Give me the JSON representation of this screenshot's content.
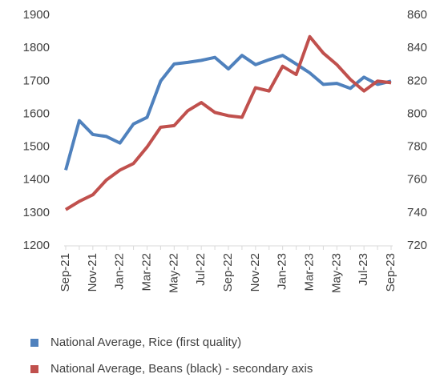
{
  "chart_data": {
    "type": "line",
    "categories": [
      "Sep-21",
      null,
      "Nov-21",
      null,
      "Jan-22",
      null,
      "Mar-22",
      null,
      "May-22",
      null,
      "Jul-22",
      null,
      "Sep-22",
      null,
      "Nov-22",
      null,
      "Jan-23",
      null,
      "Mar-23",
      null,
      "May-23",
      null,
      "Jul-23",
      null,
      "Sep-23"
    ],
    "series": [
      {
        "name": "National Average, Rice (first quality)",
        "color": "#4f81bd",
        "axis": "y",
        "values": [
          1430,
          1580,
          1538,
          1532,
          1512,
          1570,
          1590,
          1700,
          1752,
          1757,
          1763,
          1772,
          1737,
          1778,
          1750,
          1765,
          1778,
          1752,
          1725,
          1690,
          1693,
          1678,
          1712,
          1690,
          1700
        ]
      },
      {
        "name": "National Average, Beans (black) - secondary axis",
        "color": "#c0504d",
        "axis": "y2",
        "values": [
          742,
          747,
          751,
          760,
          766,
          770,
          780,
          792,
          793,
          802,
          807,
          801,
          799,
          798,
          816,
          814,
          829,
          824,
          847,
          837,
          830,
          821,
          814,
          820,
          819
        ]
      }
    ],
    "ylim": [
      1200,
      1900
    ],
    "yticks": [
      1200,
      1300,
      1400,
      1500,
      1600,
      1700,
      1800,
      1900
    ],
    "y2lim": [
      720,
      860
    ],
    "y2ticks": [
      720,
      740,
      760,
      780,
      800,
      820,
      840,
      860
    ],
    "grid": false,
    "legend": "bottom"
  }
}
